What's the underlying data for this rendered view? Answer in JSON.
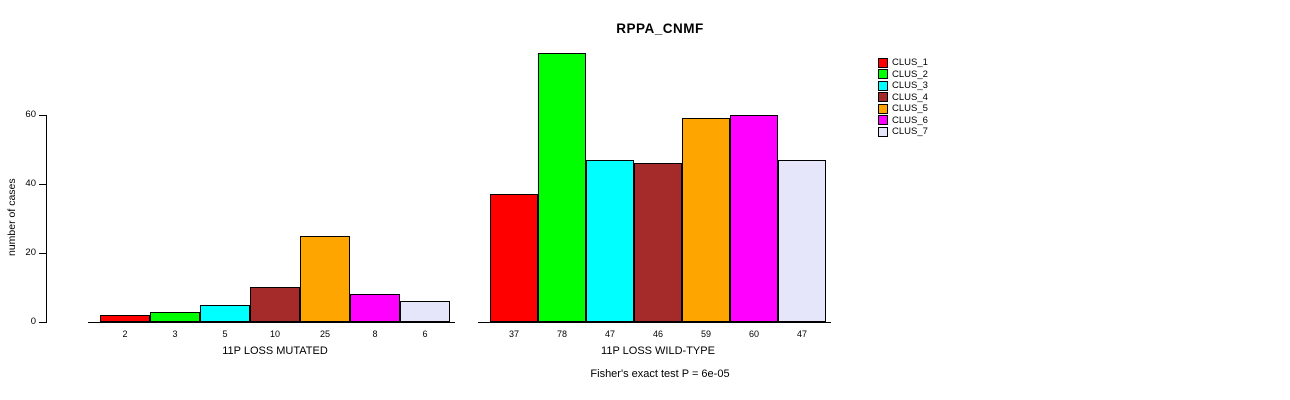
{
  "chart_data": {
    "type": "bar",
    "title": "RPPA_CNMF",
    "ylabel": "number of cases",
    "yticks": [
      0,
      20,
      40,
      60
    ],
    "ylim": [
      0,
      78
    ],
    "grid": false,
    "legend_position": "right",
    "series_names": [
      "CLUS_1",
      "CLUS_2",
      "CLUS_3",
      "CLUS_4",
      "CLUS_5",
      "CLUS_6",
      "CLUS_7"
    ],
    "colors": [
      "#FF0000",
      "#00FF00",
      "#00FFFF",
      "#A52A2A",
      "#FFA500",
      "#FF00FF",
      "#E6E6FA"
    ],
    "groups": [
      {
        "label": "11P LOSS MUTATED",
        "values": [
          2,
          3,
          5,
          10,
          25,
          8,
          6
        ]
      },
      {
        "label": "11P LOSS WILD-TYPE",
        "values": [
          37,
          78,
          47,
          46,
          59,
          60,
          47
        ]
      }
    ],
    "footnote": "Fisher's exact test P = 6e-05"
  }
}
